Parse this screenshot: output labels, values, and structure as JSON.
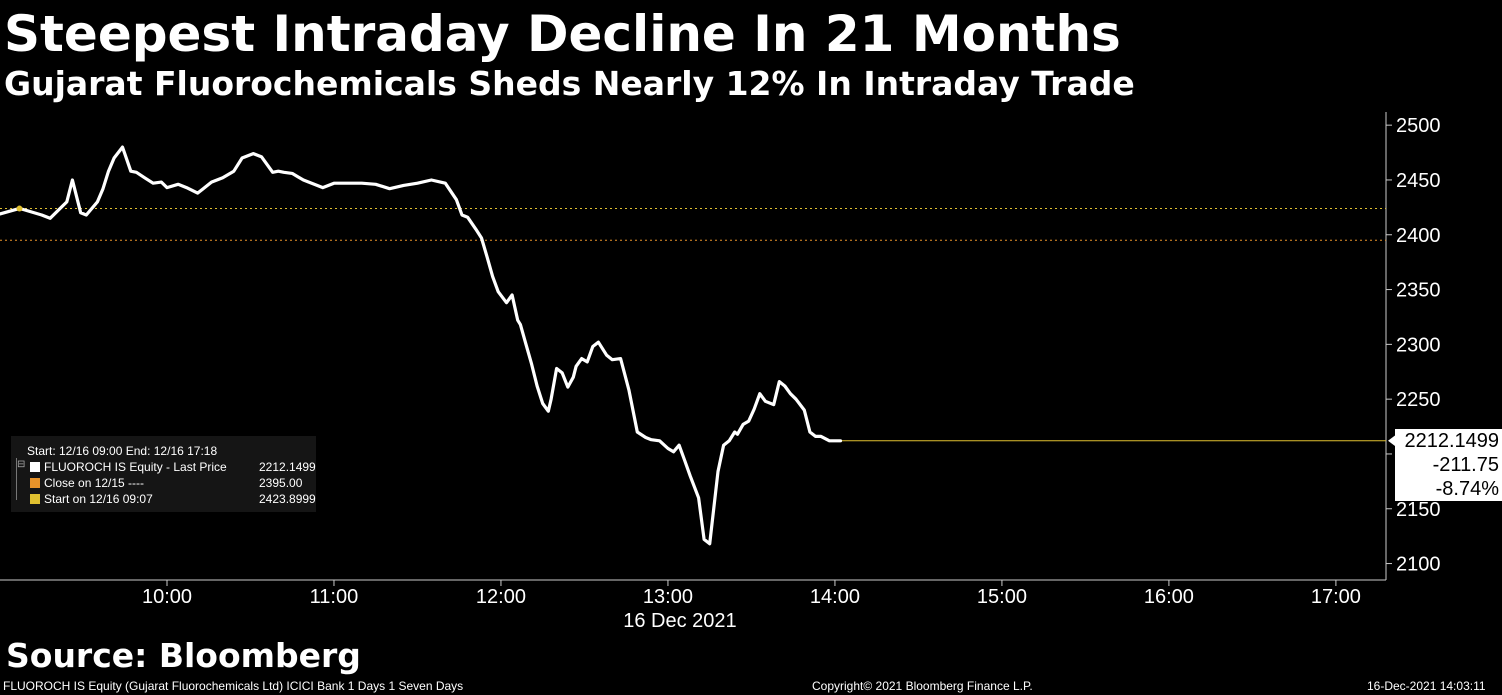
{
  "header": {
    "title": "Steepest Intraday Decline In 21 Months",
    "subtitle": "Gujarat Fluorochemicals Sheds Nearly 12% In Intraday Trade"
  },
  "chart_data": {
    "type": "line",
    "x_tick_labels": [
      "10:00",
      "11:00",
      "12:00",
      "13:00",
      "14:00",
      "15:00",
      "16:00",
      "17:00"
    ],
    "date_label": "16 Dec 2021",
    "y_ticks": [
      2100,
      2150,
      2200,
      2250,
      2300,
      2350,
      2400,
      2450,
      2500
    ],
    "ylim": [
      2085,
      2512
    ],
    "xlim": [
      "09:00",
      "17:18"
    ],
    "series": [
      {
        "name": "FLUOROCH IS Equity - Last Price",
        "color": "#ffffff",
        "x": [
          "09:00",
          "09:07",
          "09:15",
          "09:18",
          "09:22",
          "09:24",
          "09:26",
          "09:29",
          "09:31",
          "09:35",
          "09:37",
          "09:39",
          "09:41",
          "09:44",
          "09:47",
          "09:49",
          "09:52",
          "09:55",
          "09:58",
          "10:00",
          "10:04",
          "10:07",
          "10:11",
          "10:13",
          "10:16",
          "10:20",
          "10:24",
          "10:27",
          "10:31",
          "10:34",
          "10:38",
          "10:40",
          "10:42",
          "10:45",
          "10:47",
          "10:49",
          "10:52",
          "10:56",
          "11:00",
          "11:05",
          "11:10",
          "11:15",
          "11:20",
          "11:25",
          "11:30",
          "11:35",
          "11:40",
          "11:44",
          "11:46",
          "11:48",
          "11:51",
          "11:53",
          "11:55",
          "11:57",
          "11:59",
          "12:02",
          "12:04",
          "12:06",
          "12:07",
          "12:09",
          "12:11",
          "12:13",
          "12:15",
          "12:17",
          "12:18",
          "12:20",
          "12:22",
          "12:24",
          "12:26",
          "12:27",
          "12:29",
          "12:31",
          "12:33",
          "12:35",
          "12:38",
          "12:40",
          "12:43",
          "12:46",
          "12:49",
          "12:52",
          "12:54",
          "12:57",
          "13:00",
          "13:02",
          "13:04",
          "13:06",
          "13:08",
          "13:11",
          "13:13",
          "13:15",
          "13:18",
          "13:20",
          "13:22",
          "13:24",
          "13:25",
          "13:27",
          "13:29",
          "13:31",
          "13:33",
          "13:35",
          "13:38",
          "13:40",
          "13:42",
          "13:44",
          "13:46",
          "13:49",
          "13:51",
          "13:53",
          "13:55",
          "13:58",
          "14:00",
          "14:02"
        ],
        "values": [
          2419,
          2424,
          2418,
          2415,
          2425,
          2430,
          2450,
          2420,
          2418,
          2430,
          2442,
          2458,
          2470,
          2480,
          2458,
          2457,
          2452,
          2447,
          2448,
          2443,
          2446,
          2443,
          2438,
          2442,
          2448,
          2452,
          2458,
          2470,
          2474,
          2471,
          2457,
          2458,
          2457,
          2456,
          2453,
          2450,
          2447,
          2443,
          2447,
          2447,
          2447,
          2446,
          2442,
          2445,
          2447,
          2450,
          2447,
          2432,
          2418,
          2416,
          2405,
          2397,
          2380,
          2362,
          2348,
          2338,
          2345,
          2322,
          2318,
          2300,
          2282,
          2262,
          2246,
          2239,
          2250,
          2278,
          2274,
          2261,
          2270,
          2280,
          2287,
          2284,
          2298,
          2302,
          2290,
          2286,
          2287,
          2258,
          2220,
          2215,
          2213,
          2212,
          2205,
          2202,
          2208,
          2194,
          2180,
          2160,
          2122,
          2118,
          2184,
          2208,
          2212,
          2220,
          2218,
          2227,
          2230,
          2241,
          2255,
          2248,
          2245,
          2266,
          2262,
          2255,
          2250,
          2240,
          2220,
          2216,
          2216,
          2212,
          2212,
          2212
        ]
      }
    ],
    "reference_lines": [
      {
        "name": "Close on 12/15",
        "value": 2395.0,
        "color": "#e8932a"
      },
      {
        "name": "Start on 12/16 09:07",
        "value": 2423.8999,
        "color": "#e0c030"
      }
    ],
    "grid": false
  },
  "legend": {
    "range": "Start: 12/16 09:00 End: 12/16 17:18",
    "items": [
      {
        "label": "FLUOROCH IS Equity - Last Price",
        "value": "2212.1499",
        "color": "#ffffff"
      },
      {
        "label": "Close on 12/15 ----",
        "value": "2395.00",
        "color": "#e8932a"
      },
      {
        "label": "Start on 12/16 09:07",
        "value": "2423.8999",
        "color": "#e0c030"
      }
    ]
  },
  "last_price_box": {
    "price": "2212.1499",
    "change": "-211.75",
    "change_pct": "-8.74%"
  },
  "footer": {
    "source": "Source: Bloomberg",
    "left": "FLUOROCH IS Equity (Gujarat Fluorochemicals Ltd) ICICI Bank 1 Days 1 Seven Days",
    "center": "Copyright© 2021 Bloomberg Finance L.P.",
    "right": "16-Dec-2021 14:03:11"
  }
}
